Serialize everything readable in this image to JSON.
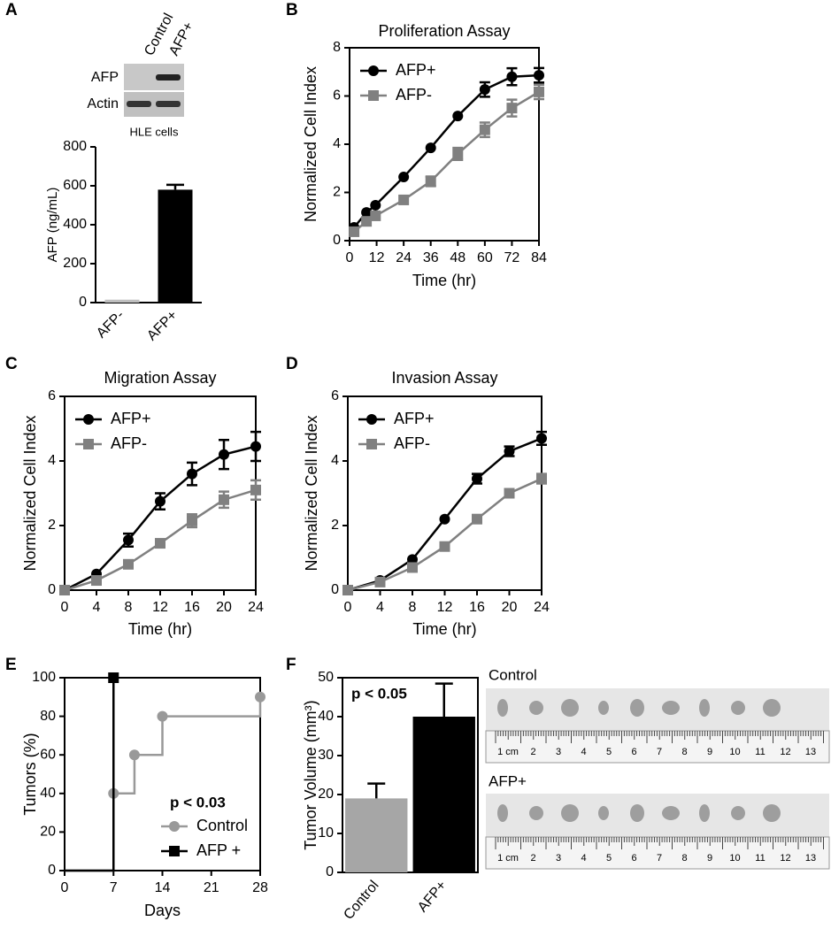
{
  "blot": {
    "lanes": [
      "Control",
      "AFP+"
    ],
    "rows": [
      "AFP",
      "Actin"
    ],
    "caption": "HLE cells"
  },
  "photos": {
    "labels": [
      "Control",
      "AFP+"
    ],
    "ruler_labels": [
      "1 cm",
      "2",
      "3",
      "4",
      "5",
      "6",
      "7",
      "8",
      "9",
      "10",
      "11",
      "12",
      "13"
    ]
  },
  "chart_data": [
    {
      "panel": "A",
      "type": "bar",
      "y_label": "AFP (ng/mL)",
      "categories": [
        "AFP-",
        "AFP+"
      ],
      "values": [
        15,
        580
      ],
      "errors": [
        null,
        25
      ],
      "colors": [
        "#bfbfbf",
        "#000000"
      ],
      "ylim": [
        0,
        800
      ],
      "yticks": [
        0,
        200,
        400,
        600,
        800
      ]
    },
    {
      "panel": "B",
      "type": "line",
      "title": "Proliferation Assay",
      "x_label": "Time (hr)",
      "y_label": "Normalized Cell Index",
      "x": [
        2,
        7.5,
        11.5,
        24,
        36,
        48,
        60,
        72,
        84
      ],
      "series": [
        {
          "name": "AFP+",
          "color": "#000000",
          "marker": "circle",
          "values": [
            0.55,
            1.17,
            1.47,
            2.64,
            3.85,
            5.17,
            6.27,
            6.8,
            6.86
          ],
          "errors": [
            null,
            null,
            null,
            null,
            null,
            null,
            0.3,
            0.35,
            0.3
          ]
        },
        {
          "name": "AFP-",
          "color": "#808080",
          "marker": "square",
          "values": [
            0.37,
            0.8,
            1.03,
            1.69,
            2.46,
            3.6,
            4.6,
            5.5,
            6.17
          ],
          "errors": [
            null,
            null,
            null,
            null,
            0.2,
            0.25,
            0.3,
            0.35,
            0.3
          ]
        }
      ],
      "xlim": [
        0,
        84
      ],
      "xticks": [
        0,
        12,
        24,
        36,
        48,
        60,
        72,
        84
      ],
      "ylim": [
        0,
        8
      ],
      "yticks": [
        0,
        2,
        4,
        6,
        8
      ],
      "legend": "upper left",
      "frame": true
    },
    {
      "panel": "C",
      "type": "line",
      "title": "Migration Assay",
      "x_label": "Time (hr)",
      "y_label": "Normalized Cell Index",
      "x": [
        0,
        4,
        8,
        12,
        16,
        20,
        24
      ],
      "series": [
        {
          "name": "AFP+",
          "color": "#000000",
          "marker": "circle",
          "values": [
            0,
            0.5,
            1.55,
            2.75,
            3.6,
            4.2,
            4.45
          ],
          "errors": [
            null,
            null,
            0.2,
            0.25,
            0.35,
            0.45,
            0.45
          ]
        },
        {
          "name": "AFP-",
          "color": "#808080",
          "marker": "square",
          "values": [
            0,
            0.3,
            0.8,
            1.45,
            2.15,
            2.8,
            3.1
          ],
          "errors": [
            null,
            null,
            null,
            null,
            0.2,
            0.25,
            0.3
          ]
        }
      ],
      "xlim": [
        0,
        24
      ],
      "xticks": [
        0,
        4,
        8,
        12,
        16,
        20,
        24
      ],
      "ylim": [
        0,
        6
      ],
      "yticks": [
        0,
        2,
        4,
        6
      ],
      "legend": "upper left",
      "frame": true,
      "zero_line": true
    },
    {
      "panel": "D",
      "type": "line",
      "title": "Invasion Assay",
      "x_label": "Time (hr)",
      "y_label": "Normalized Cell Index",
      "x": [
        0,
        4,
        8,
        12,
        16,
        20,
        24
      ],
      "series": [
        {
          "name": "AFP+",
          "color": "#000000",
          "marker": "circle",
          "values": [
            0,
            0.3,
            0.95,
            2.2,
            3.45,
            4.3,
            4.7
          ],
          "errors": [
            null,
            null,
            null,
            null,
            0.15,
            0.15,
            0.2
          ]
        },
        {
          "name": "AFP-",
          "color": "#808080",
          "marker": "square",
          "values": [
            0,
            0.25,
            0.7,
            1.35,
            2.2,
            3.0,
            3.45
          ],
          "errors": [
            null,
            null,
            null,
            null,
            null,
            null,
            0.15
          ]
        }
      ],
      "xlim": [
        0,
        24
      ],
      "xticks": [
        0,
        4,
        8,
        12,
        16,
        20,
        24
      ],
      "ylim": [
        0,
        6
      ],
      "yticks": [
        0,
        2,
        4,
        6
      ],
      "legend": "upper left",
      "frame": true,
      "zero_line": true
    },
    {
      "panel": "E",
      "type": "step",
      "x_label": "Days",
      "y_label": "Tumors (%)",
      "annotation": "p < 0.03",
      "series": [
        {
          "name": "Control",
          "color": "#999999",
          "marker": "circle",
          "x": [
            0,
            7,
            10,
            14,
            28
          ],
          "values": [
            0,
            40,
            60,
            80,
            90
          ]
        },
        {
          "name": "AFP +",
          "color": "#000000",
          "marker": "square",
          "x": [
            0,
            7
          ],
          "values": [
            0,
            100
          ]
        }
      ],
      "xlim": [
        0,
        28
      ],
      "xticks": [
        0,
        7,
        14,
        21,
        28
      ],
      "ylim": [
        0,
        100
      ],
      "yticks": [
        0,
        20,
        40,
        60,
        80,
        100
      ],
      "legend": "lower right",
      "frame": true
    },
    {
      "panel": "F",
      "type": "bar",
      "y_label": "Tumor Volume (mm³)",
      "annotation": "p < 0.05",
      "categories": [
        "Control",
        "AFP+"
      ],
      "values": [
        19,
        40
      ],
      "errors": [
        3.8,
        8.5
      ],
      "colors": [
        "#a6a6a6",
        "#000000"
      ],
      "ylim": [
        0,
        50
      ],
      "yticks": [
        0,
        10,
        20,
        30,
        40,
        50
      ],
      "frame": true
    }
  ]
}
